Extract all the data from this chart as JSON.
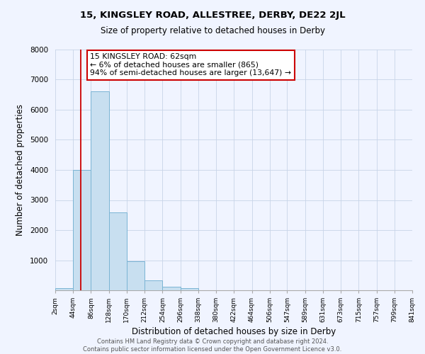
{
  "title": "15, KINGSLEY ROAD, ALLESTREE, DERBY, DE22 2JL",
  "subtitle": "Size of property relative to detached houses in Derby",
  "xlabel": "Distribution of detached houses by size in Derby",
  "ylabel": "Number of detached properties",
  "bin_edges": [
    2,
    44,
    86,
    128,
    170,
    212,
    254,
    296,
    338,
    380,
    422,
    464,
    506,
    547,
    589,
    631,
    673,
    715,
    757,
    799,
    841
  ],
  "bin_counts": [
    60,
    4000,
    6600,
    2600,
    960,
    320,
    120,
    60,
    0,
    0,
    0,
    0,
    0,
    0,
    0,
    0,
    0,
    0,
    0,
    0
  ],
  "bar_color": "#c8dff0",
  "bar_edgecolor": "#7ab4d4",
  "property_line_x": 62,
  "property_line_color": "#cc0000",
  "annotation_text": "15 KINGSLEY ROAD: 62sqm\n← 6% of detached houses are smaller (865)\n94% of semi-detached houses are larger (13,647) →",
  "annotation_box_facecolor": "white",
  "annotation_box_edgecolor": "#cc0000",
  "ylim": [
    0,
    8000
  ],
  "yticks": [
    0,
    1000,
    2000,
    3000,
    4000,
    5000,
    6000,
    7000,
    8000
  ],
  "tick_labels": [
    "2sqm",
    "44sqm",
    "86sqm",
    "128sqm",
    "170sqm",
    "212sqm",
    "254sqm",
    "296sqm",
    "338sqm",
    "380sqm",
    "422sqm",
    "464sqm",
    "506sqm",
    "547sqm",
    "589sqm",
    "631sqm",
    "673sqm",
    "715sqm",
    "757sqm",
    "799sqm",
    "841sqm"
  ],
  "footer_text": "Contains HM Land Registry data © Crown copyright and database right 2024.\nContains public sector information licensed under the Open Government Licence v3.0.",
  "background_color": "#f0f4ff",
  "grid_color": "#c8d4e8"
}
